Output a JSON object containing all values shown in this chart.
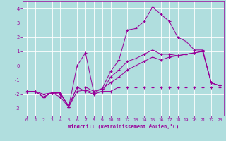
{
  "xlabel": "Windchill (Refroidissement éolien,°C)",
  "x_values": [
    0,
    1,
    2,
    3,
    4,
    5,
    6,
    7,
    8,
    9,
    10,
    11,
    12,
    13,
    14,
    15,
    16,
    17,
    18,
    19,
    20,
    21,
    22,
    23
  ],
  "line1": [
    -1.8,
    -1.8,
    -2.2,
    -1.9,
    -1.9,
    -2.9,
    0.0,
    0.9,
    -1.9,
    -1.6,
    -0.4,
    0.4,
    2.5,
    2.6,
    3.1,
    4.1,
    3.6,
    3.1,
    2.0,
    1.7,
    1.1,
    1.1,
    -1.2,
    -1.4
  ],
  "line2": [
    -1.8,
    -1.8,
    -2.2,
    -1.9,
    -2.2,
    -2.9,
    -1.8,
    -1.7,
    -1.9,
    -1.8,
    -1.8,
    -1.5,
    -1.5,
    -1.5,
    -1.5,
    -1.5,
    -1.5,
    -1.5,
    -1.5,
    -1.5,
    -1.5,
    -1.5,
    -1.5,
    -1.5
  ],
  "line3": [
    -1.8,
    -1.8,
    -2.2,
    -1.9,
    -1.9,
    -2.9,
    -1.5,
    -1.8,
    -2.0,
    -1.8,
    -0.8,
    -0.3,
    0.3,
    0.5,
    0.8,
    1.1,
    0.8,
    0.8,
    0.7,
    0.8,
    0.9,
    1.0,
    -1.2,
    -1.4
  ],
  "line4": [
    -1.8,
    -1.8,
    -2.0,
    -1.9,
    -2.0,
    -2.8,
    -1.5,
    -1.5,
    -1.8,
    -1.6,
    -1.2,
    -0.8,
    -0.3,
    0.0,
    0.3,
    0.6,
    0.4,
    0.6,
    0.7,
    0.8,
    0.9,
    1.0,
    -1.2,
    -1.4
  ],
  "line_color": "#990099",
  "bg_color": "#b0dede",
  "grid_color": "#ffffff",
  "ylim": [
    -3.5,
    4.5
  ],
  "xlim": [
    -0.5,
    23.5
  ],
  "yticks": [
    -3,
    -2,
    -1,
    0,
    1,
    2,
    3,
    4
  ],
  "xticks": [
    0,
    1,
    2,
    3,
    4,
    5,
    6,
    7,
    8,
    9,
    10,
    11,
    12,
    13,
    14,
    15,
    16,
    17,
    18,
    19,
    20,
    21,
    22,
    23
  ]
}
